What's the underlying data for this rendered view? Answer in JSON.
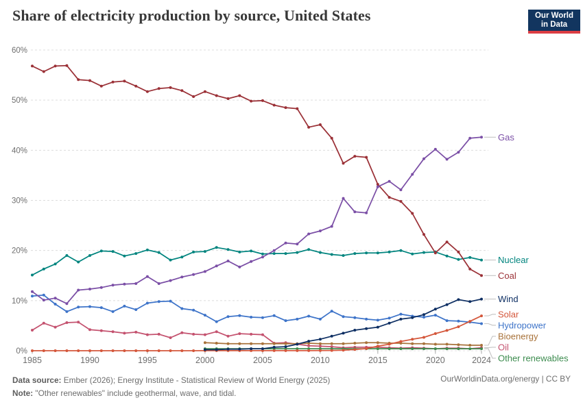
{
  "header": {
    "title": "Share of electricity production by source, United States",
    "logo_line1": "Our World",
    "logo_line2": "in Data",
    "logo_bg": "#12355f",
    "logo_bar": "#dc3d43"
  },
  "footer": {
    "source_label": "Data source:",
    "source_text": " Ember (2026); Energy Institute - Statistical Review of World Energy (2025)",
    "note_label": "Note:",
    "note_text": " \"Other renewables\" include geothermal, wave, and tidal.",
    "credit": "OurWorldinData.org/energy | CC BY"
  },
  "chart_data": {
    "type": "line",
    "title": "Share of electricity production by source, United States",
    "xlabel": "",
    "ylabel": "",
    "x_range": [
      1985,
      2024
    ],
    "ylim": [
      0,
      60
    ],
    "grid": true,
    "legend_position": "right",
    "y_ticks": [
      {
        "value": 0,
        "label": "0%"
      },
      {
        "value": 10,
        "label": "10%"
      },
      {
        "value": 20,
        "label": "20%"
      },
      {
        "value": 30,
        "label": "30%"
      },
      {
        "value": 40,
        "label": "40%"
      },
      {
        "value": 50,
        "label": "50%"
      },
      {
        "value": 60,
        "label": "60%"
      }
    ],
    "x_ticks": [
      1985,
      1990,
      1995,
      2000,
      2005,
      2010,
      2015,
      2020,
      2024
    ],
    "series": [
      {
        "name": "Oil",
        "color": "#c4526f",
        "start_year": 1985,
        "values": [
          4.1,
          5.5,
          4.7,
          5.6,
          5.7,
          4.2,
          4.0,
          3.8,
          3.5,
          3.7,
          3.2,
          3.3,
          2.6,
          3.6,
          3.3,
          3.2,
          3.8,
          2.9,
          3.4,
          3.3,
          3.2,
          1.5,
          1.6,
          1.3,
          1.0,
          0.9,
          0.8,
          0.6,
          0.7,
          0.7,
          0.7,
          0.6,
          0.5,
          0.6,
          0.5,
          0.4,
          0.5,
          0.5,
          0.4,
          0.6
        ]
      },
      {
        "name": "Other renewables",
        "color": "#3d8c4f",
        "start_year": 2000,
        "values": [
          0.4,
          0.4,
          0.4,
          0.4,
          0.4,
          0.4,
          0.4,
          0.4,
          0.4,
          0.4,
          0.4,
          0.4,
          0.4,
          0.4,
          0.4,
          0.4,
          0.4,
          0.4,
          0.4,
          0.4,
          0.4,
          0.4,
          0.4,
          0.4,
          0.4
        ]
      },
      {
        "name": "Bioenergy",
        "color": "#a8723a",
        "start_year": 2000,
        "values": [
          1.6,
          1.5,
          1.4,
          1.4,
          1.4,
          1.4,
          1.4,
          1.4,
          1.4,
          1.5,
          1.4,
          1.4,
          1.4,
          1.5,
          1.6,
          1.6,
          1.5,
          1.5,
          1.4,
          1.4,
          1.3,
          1.3,
          1.2,
          1.1,
          1.1
        ]
      },
      {
        "name": "Hydropower",
        "color": "#3e74c9",
        "start_year": 1985,
        "values": [
          10.9,
          11.1,
          9.3,
          7.8,
          8.7,
          8.8,
          8.6,
          7.8,
          8.9,
          8.2,
          9.5,
          9.8,
          9.9,
          8.4,
          8.1,
          7.1,
          5.8,
          6.8,
          7.0,
          6.7,
          6.6,
          7.0,
          6.0,
          6.3,
          6.9,
          6.3,
          7.9,
          6.8,
          6.6,
          6.3,
          6.1,
          6.5,
          7.3,
          6.9,
          6.7,
          7.1,
          6.0,
          5.9,
          5.7,
          5.4
        ]
      },
      {
        "name": "Nuclear",
        "color": "#00847e",
        "start_year": 1985,
        "values": [
          15.1,
          16.3,
          17.3,
          19.0,
          17.7,
          19.0,
          19.9,
          19.8,
          18.9,
          19.4,
          20.1,
          19.6,
          18.1,
          18.7,
          19.7,
          19.8,
          20.6,
          20.2,
          19.7,
          19.9,
          19.3,
          19.4,
          19.4,
          19.6,
          20.2,
          19.6,
          19.2,
          19.0,
          19.4,
          19.5,
          19.5,
          19.7,
          20.0,
          19.3,
          19.6,
          19.7,
          18.9,
          18.2,
          18.6,
          18.1
        ]
      },
      {
        "name": "Coal",
        "color": "#9b3137",
        "start_year": 1985,
        "values": [
          56.8,
          55.7,
          56.8,
          56.9,
          54.1,
          53.9,
          52.8,
          53.6,
          53.8,
          52.8,
          51.7,
          52.3,
          52.5,
          51.9,
          50.7,
          51.7,
          50.9,
          50.3,
          50.9,
          49.8,
          49.9,
          49.0,
          48.5,
          48.3,
          44.6,
          45.1,
          42.4,
          37.4,
          38.8,
          38.6,
          33.2,
          30.6,
          29.8,
          27.4,
          23.2,
          19.5,
          21.7,
          19.7,
          16.3,
          15.0
        ]
      },
      {
        "name": "Gas",
        "color": "#7b4fa6",
        "start_year": 1985,
        "values": [
          11.8,
          10.1,
          10.5,
          9.4,
          12.1,
          12.3,
          12.6,
          13.1,
          13.3,
          13.4,
          14.8,
          13.4,
          14.0,
          14.7,
          15.2,
          15.8,
          16.9,
          17.9,
          16.7,
          17.8,
          18.7,
          20.0,
          21.5,
          21.3,
          23.3,
          23.9,
          24.8,
          30.4,
          27.7,
          27.5,
          32.7,
          33.8,
          32.1,
          35.2,
          38.3,
          40.2,
          38.2,
          39.6,
          42.4,
          42.6
        ]
      },
      {
        "name": "Solar",
        "color": "#d4573b",
        "start_year": 1985,
        "values": [
          0.0,
          0.0,
          0.0,
          0.0,
          0.0,
          0.0,
          0.0,
          0.0,
          0.0,
          0.0,
          0.0,
          0.0,
          0.0,
          0.0,
          0.0,
          0.01,
          0.01,
          0.01,
          0.01,
          0.01,
          0.01,
          0.01,
          0.02,
          0.02,
          0.02,
          0.03,
          0.06,
          0.11,
          0.23,
          0.42,
          0.9,
          1.3,
          1.85,
          2.28,
          2.67,
          3.42,
          4.04,
          4.79,
          5.87,
          6.96
        ]
      },
      {
        "name": "Wind",
        "color": "#0e2f63",
        "start_year": 2000,
        "values": [
          0.2,
          0.2,
          0.3,
          0.3,
          0.4,
          0.4,
          0.7,
          0.8,
          1.3,
          1.9,
          2.3,
          2.9,
          3.5,
          4.1,
          4.4,
          4.7,
          5.5,
          6.3,
          6.6,
          7.2,
          8.3,
          9.2,
          10.2,
          9.8,
          10.3
        ]
      }
    ]
  }
}
